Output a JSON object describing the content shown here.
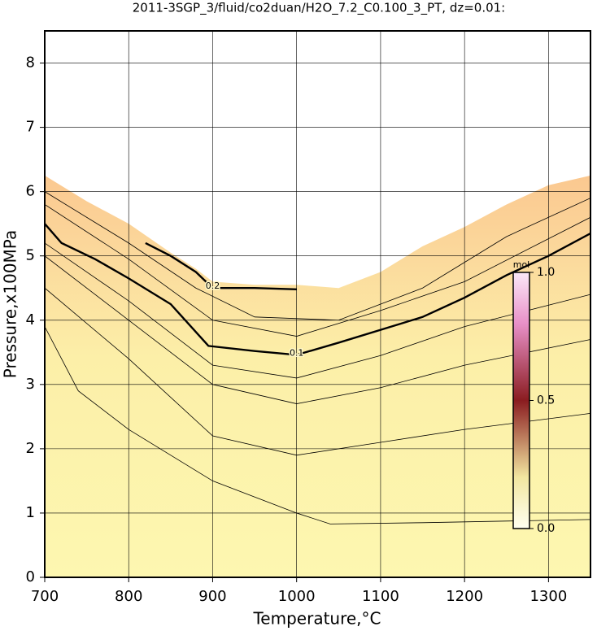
{
  "chart_data": {
    "type": "contour",
    "title": "2011-3SGP_3/fluid/co2duan/H2O_7.2_C0.100_3_PT, dz=0.01:",
    "x_label": "Temperature,°C",
    "y_label": "Pressure,x100MPa",
    "xlim": [
      700,
      1350
    ],
    "ylim": [
      0,
      8.5
    ],
    "xticks": [
      700,
      800,
      900,
      1000,
      1100,
      1200,
      1300
    ],
    "yticks": [
      0,
      1,
      2,
      3,
      4,
      5,
      6,
      7,
      8
    ],
    "grid": true,
    "fill_top": {
      "x": [
        700,
        750,
        800,
        850,
        880,
        900,
        950,
        1000,
        1050,
        1100,
        1150,
        1200,
        1250,
        1300,
        1350
      ],
      "values": [
        6.25,
        5.85,
        5.5,
        5.05,
        4.8,
        4.6,
        4.55,
        4.55,
        4.5,
        4.75,
        5.15,
        5.45,
        5.8,
        6.1,
        6.25
      ]
    },
    "series": [
      {
        "name": "0.1",
        "x": [
          700,
          720,
          760,
          800,
          850,
          895,
          950,
          1000,
          1050,
          1125,
          1150,
          1200,
          1250,
          1300,
          1350
        ],
        "values": [
          5.5,
          5.2,
          4.95,
          4.65,
          4.25,
          3.6,
          3.52,
          3.46,
          3.65,
          3.95,
          4.05,
          4.35,
          4.7,
          5.0,
          5.35
        ]
      },
      {
        "name": "0.2",
        "x": [
          820,
          850,
          880,
          900,
          950,
          1000
        ],
        "values": [
          5.2,
          5.0,
          4.75,
          4.5,
          4.5,
          4.48
        ]
      },
      {
        "x": [
          700,
          740,
          800,
          900,
          1000,
          1040,
          1150,
          1350
        ],
        "values": [
          3.9,
          2.9,
          2.3,
          1.5,
          1.0,
          0.83,
          0.85,
          0.9
        ]
      },
      {
        "x": [
          700,
          800,
          900,
          1000,
          1100,
          1200,
          1350
        ],
        "values": [
          4.5,
          3.4,
          2.2,
          1.9,
          2.1,
          2.3,
          2.55
        ]
      },
      {
        "x": [
          700,
          800,
          900,
          1000,
          1100,
          1200,
          1350
        ],
        "values": [
          5.0,
          4.0,
          3.0,
          2.7,
          2.95,
          3.3,
          3.7
        ]
      },
      {
        "x": [
          700,
          800,
          900,
          1000,
          1100,
          1200,
          1350
        ],
        "values": [
          5.2,
          4.3,
          3.3,
          3.1,
          3.45,
          3.9,
          4.4
        ]
      },
      {
        "x": [
          700,
          800,
          900,
          1000,
          1100,
          1200,
          1350
        ],
        "values": [
          5.8,
          4.95,
          4.0,
          3.75,
          4.15,
          4.6,
          5.6
        ]
      },
      {
        "x": [
          700,
          800,
          880,
          950,
          1050,
          1150,
          1250,
          1350
        ],
        "values": [
          6.0,
          5.2,
          4.5,
          4.05,
          4.0,
          4.5,
          5.3,
          5.9
        ]
      }
    ],
    "colorbar": {
      "label": "mol",
      "lim": [
        0,
        1
      ],
      "ticks": [
        {
          "value": 0,
          "label": "0.0"
        },
        {
          "value": 0.5,
          "label": "0.5"
        },
        {
          "value": 1,
          "label": "1.0"
        }
      ]
    }
  }
}
